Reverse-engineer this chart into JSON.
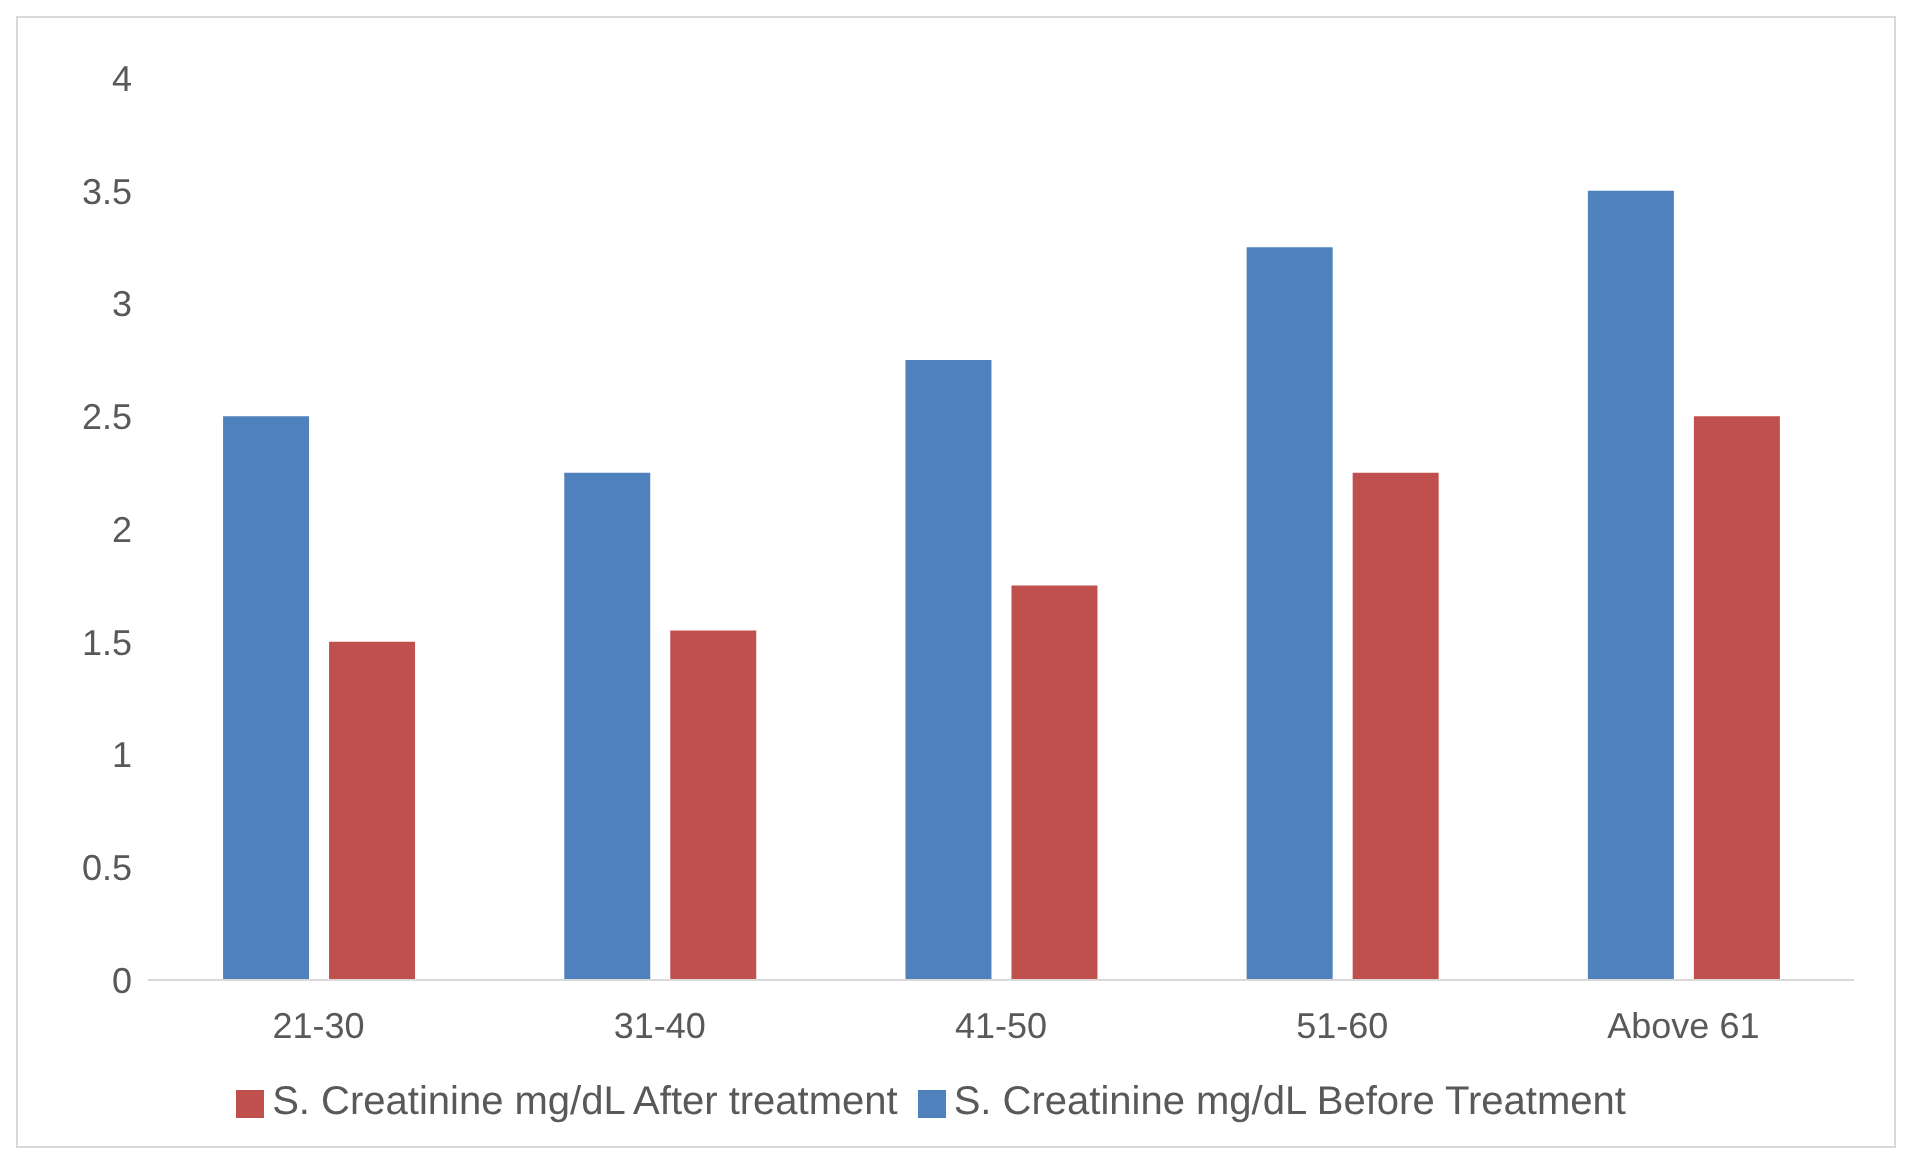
{
  "chart_data": {
    "type": "bar",
    "categories": [
      "21-30",
      "31-40",
      "41-50",
      "51-60",
      "Above 61"
    ],
    "series": [
      {
        "name": "S. Creatinine mg/dL Before Treatment",
        "color": "#4f81bd",
        "values": [
          2.5,
          2.25,
          2.75,
          3.25,
          3.5
        ]
      },
      {
        "name": "S. Creatinine mg/dL After treatment",
        "color": "#c0504d",
        "values": [
          1.5,
          1.55,
          1.75,
          2.25,
          2.5
        ]
      }
    ],
    "ylim": [
      0,
      4
    ],
    "yticks": [
      0,
      0.5,
      1,
      1.5,
      2,
      2.5,
      3,
      3.5,
      4
    ],
    "grid": false,
    "legend": "bottom"
  }
}
